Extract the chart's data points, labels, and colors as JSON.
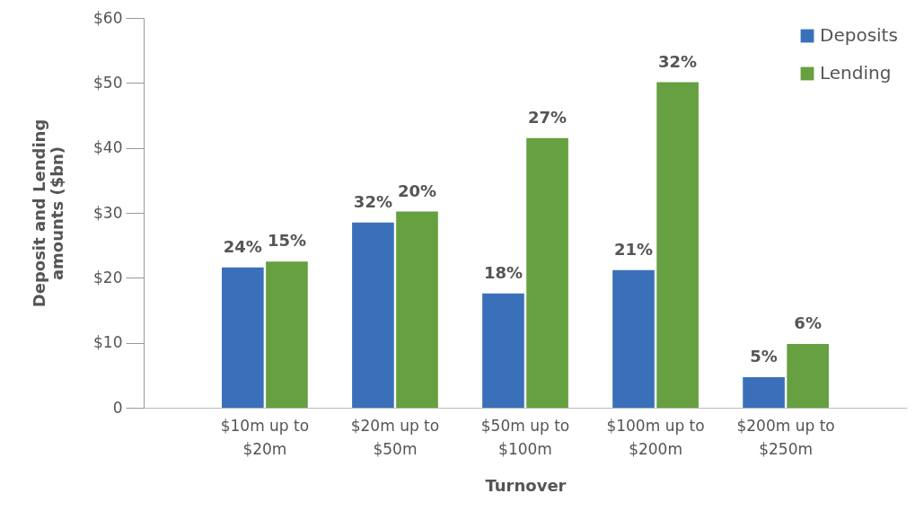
{
  "chart_data": {
    "type": "bar",
    "xlabel": "Turnover",
    "ylabel": "Deposit and Lending amounts ($bn)",
    "categories": [
      "$10m up to $20m",
      "$20m up to $50m",
      "$50m up to $100m",
      "$100m up to $200m",
      "$200m up to $250m"
    ],
    "series": [
      {
        "name": "Deposits",
        "color": "#3a70b9",
        "values": [
          21.6,
          28.5,
          17.6,
          21.2,
          4.7
        ]
      },
      {
        "name": "Lending",
        "color": "#66a040",
        "values": [
          22.5,
          30.2,
          41.5,
          50.1,
          9.8
        ]
      }
    ],
    "annotations": [
      {
        "text": "24%",
        "x": "$10m up to $20m",
        "y": 21.6
      },
      {
        "text": "32%",
        "x": "$20m up to $50m",
        "y": 28.5
      },
      {
        "text": "18%",
        "x": "$50m up to $100m",
        "y": 17.6
      },
      {
        "text": "21%",
        "x": "$100m up to $200m",
        "y": 21.2
      },
      {
        "text": "5%",
        "x": "$200m up to $250m",
        "y": 4.7
      },
      {
        "text": "15%",
        "x": "$10m up to $20m",
        "y": 22.5
      },
      {
        "text": "20%",
        "x": "$20m up to $50m",
        "y": 30.2
      },
      {
        "text": "27%",
        "x": "$50m up to $100m",
        "y": 41.5
      },
      {
        "text": "32%",
        "x": "$100m up to $200m",
        "y": 50.1
      },
      {
        "text": "6%",
        "x": "$200m up to $250m",
        "y": 9.8
      }
    ],
    "ylim": [
      0,
      60
    ],
    "yticks": [
      0,
      {
        "value": 10,
        "label": "$10"
      },
      {
        "value": 20,
        "label": "$20"
      },
      {
        "value": 30,
        "label": "$30"
      },
      {
        "value": 40,
        "label": "$40"
      },
      {
        "value": 50,
        "label": "$50"
      },
      {
        "value": 60,
        "label": "$60"
      }
    ],
    "grid": false,
    "legend": "top right"
  }
}
